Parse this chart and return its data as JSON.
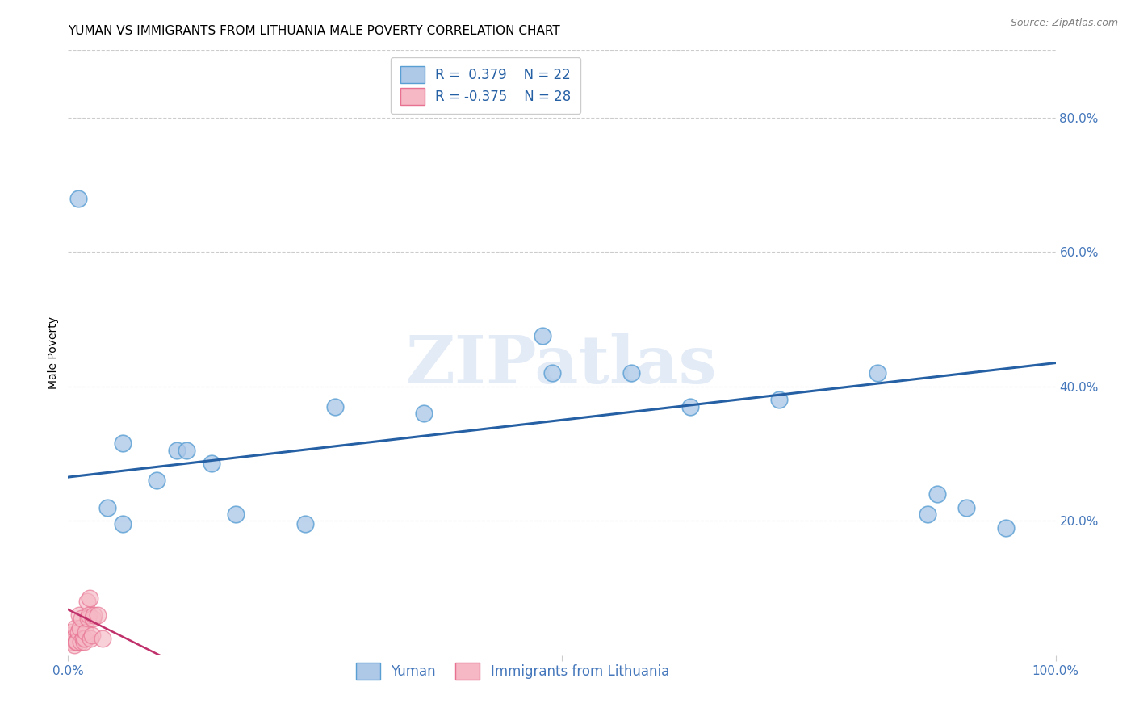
{
  "title": "YUMAN VS IMMIGRANTS FROM LITHUANIA MALE POVERTY CORRELATION CHART",
  "source": "Source: ZipAtlas.com",
  "ylabel": "Male Poverty",
  "right_yticks": [
    20.0,
    40.0,
    60.0,
    80.0
  ],
  "watermark": "ZIPatlas",
  "yuman_x": [
    0.01,
    0.04,
    0.055,
    0.055,
    0.09,
    0.11,
    0.12,
    0.145,
    0.17,
    0.24,
    0.27,
    0.36,
    0.48,
    0.49,
    0.57,
    0.63,
    0.72,
    0.82,
    0.87,
    0.88,
    0.91,
    0.95
  ],
  "yuman_y": [
    0.68,
    0.22,
    0.195,
    0.315,
    0.26,
    0.305,
    0.305,
    0.285,
    0.21,
    0.195,
    0.37,
    0.36,
    0.475,
    0.42,
    0.42,
    0.37,
    0.38,
    0.42,
    0.21,
    0.24,
    0.22,
    0.19
  ],
  "lithuania_x": [
    0.001,
    0.002,
    0.003,
    0.004,
    0.005,
    0.006,
    0.007,
    0.008,
    0.009,
    0.01,
    0.011,
    0.012,
    0.013,
    0.014,
    0.015,
    0.016,
    0.017,
    0.018,
    0.019,
    0.02,
    0.021,
    0.022,
    0.023,
    0.024,
    0.025,
    0.026,
    0.03,
    0.035
  ],
  "lithuania_y": [
    0.025,
    0.03,
    0.035,
    0.02,
    0.025,
    0.015,
    0.04,
    0.02,
    0.02,
    0.035,
    0.06,
    0.04,
    0.02,
    0.055,
    0.025,
    0.02,
    0.025,
    0.035,
    0.08,
    0.055,
    0.06,
    0.085,
    0.025,
    0.03,
    0.055,
    0.06,
    0.06,
    0.025
  ],
  "yuman_R": 0.379,
  "yuman_N": 22,
  "lithuania_R": -0.375,
  "lithuania_N": 28,
  "yuman_color": "#aec8e8",
  "yuman_edge_color": "#5a9fd4",
  "yuman_line_color": "#2660a4",
  "lithuania_color": "#f5b8c4",
  "lithuania_edge_color": "#e87090",
  "lithuania_line_color": "#c0306a",
  "tick_color": "#4477bb",
  "legend_text_color": "#2660a4",
  "xlim": [
    0.0,
    1.0
  ],
  "ylim": [
    0.0,
    0.9
  ],
  "title_fontsize": 11,
  "source_fontsize": 9,
  "axis_label_fontsize": 10,
  "tick_fontsize": 11,
  "legend_fontsize": 12
}
